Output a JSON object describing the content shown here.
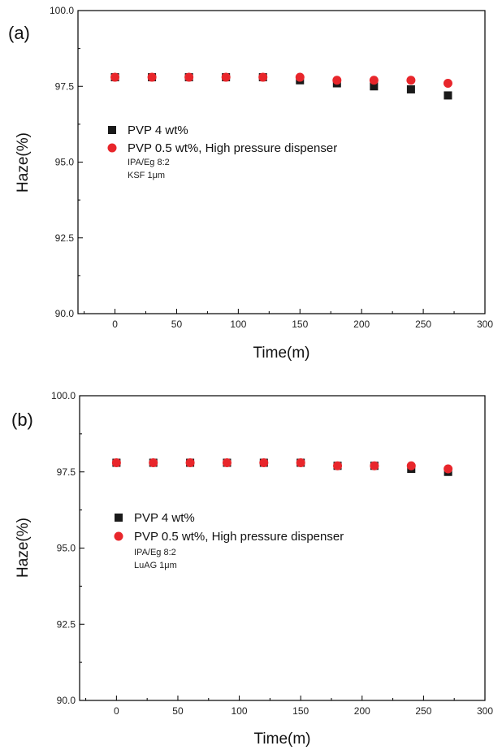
{
  "chart_data": [
    {
      "type": "scatter",
      "panel_label": "(a)",
      "xlabel": "Time(m)",
      "ylabel": "Haze(%)",
      "xlim": [
        -30,
        300
      ],
      "ylim": [
        90.0,
        100.0
      ],
      "xticks": [
        0,
        50,
        100,
        150,
        200,
        250,
        300
      ],
      "yticks": [
        "90.0",
        "92.5",
        "95.0",
        "97.5",
        "100.0"
      ],
      "legend_position": "center-left",
      "notes": [
        "IPA/Eg 8:2",
        "KSF 1μm"
      ],
      "series": [
        {
          "name": "PVP 4 wt%",
          "marker": "square",
          "color": "#1a1a1a",
          "x": [
            0,
            30,
            60,
            90,
            120,
            150,
            180,
            210,
            240,
            270
          ],
          "y": [
            97.8,
            97.8,
            97.8,
            97.8,
            97.8,
            97.7,
            97.6,
            97.5,
            97.4,
            97.2
          ]
        },
        {
          "name": "PVP 0.5 wt%, High pressure dispenser",
          "marker": "circle",
          "color": "#e8262b",
          "x": [
            0,
            30,
            60,
            90,
            120,
            150,
            180,
            210,
            240,
            270
          ],
          "y": [
            97.8,
            97.8,
            97.8,
            97.8,
            97.8,
            97.8,
            97.7,
            97.7,
            97.7,
            97.6
          ]
        }
      ]
    },
    {
      "type": "scatter",
      "panel_label": "(b)",
      "xlabel": "Time(m)",
      "ylabel": "Haze(%)",
      "xlim": [
        -30,
        300
      ],
      "ylim": [
        90.0,
        100.0
      ],
      "xticks": [
        0,
        50,
        100,
        150,
        200,
        250,
        300
      ],
      "yticks": [
        "90.0",
        "92.5",
        "95.0",
        "97.5",
        "100.0"
      ],
      "legend_position": "center-left",
      "notes": [
        "IPA/Eg 8:2",
        "LuAG 1μm"
      ],
      "series": [
        {
          "name": "PVP 4 wt%",
          "marker": "square",
          "color": "#1a1a1a",
          "x": [
            0,
            30,
            60,
            90,
            120,
            150,
            180,
            210,
            240,
            270
          ],
          "y": [
            97.8,
            97.8,
            97.8,
            97.8,
            97.8,
            97.8,
            97.7,
            97.7,
            97.6,
            97.5
          ]
        },
        {
          "name": "PVP 0.5 wt%, High pressure dispenser",
          "marker": "circle",
          "color": "#e8262b",
          "x": [
            0,
            30,
            60,
            90,
            120,
            150,
            180,
            210,
            240,
            270
          ],
          "y": [
            97.8,
            97.8,
            97.8,
            97.8,
            97.8,
            97.8,
            97.7,
            97.7,
            97.7,
            97.6
          ]
        }
      ]
    }
  ]
}
